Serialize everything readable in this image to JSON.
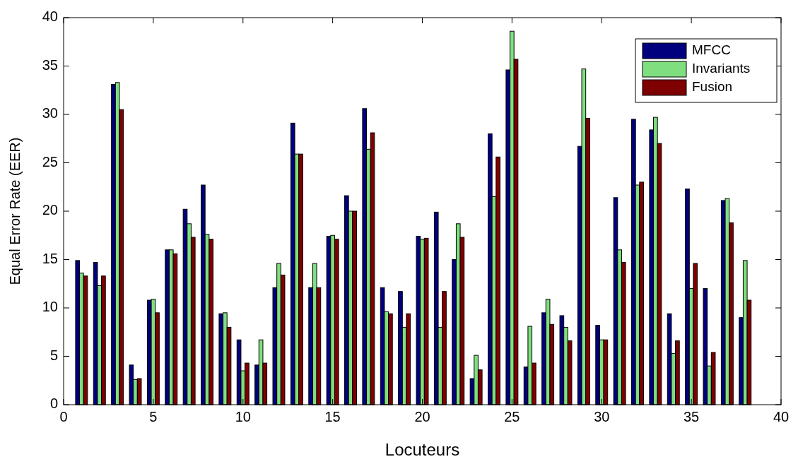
{
  "chart_data": {
    "type": "bar",
    "xlabel": "Locuteurs",
    "ylabel": "Equal Error Rate (EER)",
    "x": [
      1,
      2,
      3,
      4,
      5,
      6,
      7,
      8,
      9,
      10,
      11,
      12,
      13,
      14,
      15,
      16,
      17,
      18,
      19,
      20,
      21,
      22,
      23,
      24,
      25,
      26,
      27,
      28,
      29,
      30,
      31,
      32,
      33,
      34,
      35,
      36,
      37,
      38
    ],
    "series": [
      {
        "name": "MFCC",
        "color": "#00007f",
        "values": [
          14.9,
          14.7,
          33.1,
          4.1,
          10.8,
          16.0,
          20.2,
          22.7,
          9.4,
          6.7,
          4.1,
          12.1,
          29.1,
          12.1,
          17.4,
          21.6,
          30.6,
          12.1,
          11.7,
          17.4,
          19.9,
          15.0,
          2.7,
          28.0,
          34.6,
          3.9,
          9.5,
          9.2,
          26.7,
          8.2,
          21.4,
          29.5,
          28.4,
          9.4,
          22.3,
          12.0,
          21.1,
          9.0
        ]
      },
      {
        "name": "Invariants",
        "color": "#7fdf7f",
        "values": [
          13.6,
          12.3,
          33.3,
          2.6,
          10.9,
          16.0,
          18.7,
          17.6,
          9.5,
          3.5,
          6.7,
          14.6,
          25.9,
          14.6,
          17.5,
          20.0,
          26.4,
          9.6,
          8.0,
          17.1,
          8.0,
          18.7,
          5.1,
          21.5,
          38.6,
          8.1,
          10.9,
          8.0,
          34.7,
          6.7,
          16.0,
          22.7,
          29.7,
          5.3,
          12.0,
          4.0,
          21.3,
          14.9
        ]
      },
      {
        "name": "Fusion",
        "color": "#7f0000",
        "values": [
          13.3,
          13.3,
          30.5,
          2.7,
          9.5,
          15.6,
          17.3,
          17.1,
          8.0,
          4.3,
          4.3,
          13.4,
          25.9,
          12.1,
          17.1,
          20.0,
          28.1,
          9.4,
          9.4,
          17.2,
          11.7,
          17.3,
          3.6,
          25.6,
          35.7,
          4.3,
          8.3,
          6.6,
          29.6,
          6.7,
          14.7,
          23.0,
          27.0,
          6.6,
          14.6,
          5.4,
          18.8,
          10.8
        ]
      }
    ],
    "xlim": [
      0,
      40
    ],
    "xticks": [
      0,
      5,
      10,
      15,
      20,
      25,
      30,
      35,
      40
    ],
    "ylim": [
      0,
      40
    ],
    "yticks": [
      0,
      5,
      10,
      15,
      20,
      25,
      30,
      35,
      40
    ],
    "legend": "top right"
  }
}
